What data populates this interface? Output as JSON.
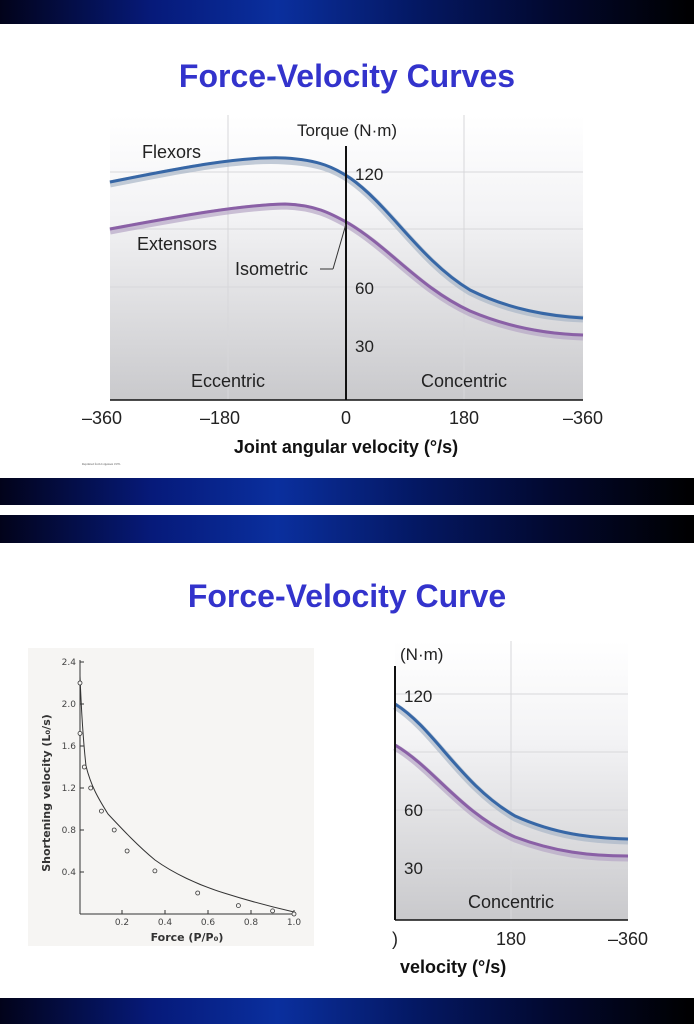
{
  "slide1": {
    "title": "Force-Velocity Curves",
    "credit": "Reprinted from Jorgensen 1976.",
    "labels": {
      "torque": "Torque (N·m)",
      "flexors": "Flexors",
      "extensors": "Extensors",
      "isometric": "Isometric",
      "eccentric": "Eccentric",
      "concentric": "Concentric",
      "xaxis": "Joint angular velocity (°/s)"
    },
    "y_ticks": [
      "120",
      "60",
      "30"
    ],
    "x_ticks": [
      "–360",
      "–180",
      "0",
      "180",
      "–360"
    ]
  },
  "slide2": {
    "title": "Force-Velocity Curve",
    "graph": {
      "ylabel": "Shortening velocity (L₀/s)",
      "xlabel": "Force (P/P₀)",
      "y_ticks": [
        "2.4",
        "2.0",
        "1.6",
        "1.2",
        "0.8",
        "0.4"
      ],
      "x_ticks": [
        "0.2",
        "0.4",
        "0.6",
        "0.8",
        "1.0"
      ]
    },
    "crop": {
      "torque": "(N·m)",
      "y_ticks": [
        "120",
        "60",
        "30"
      ],
      "x_ticks": [
        ")",
        "180",
        "–360"
      ],
      "concentric": "Concentric",
      "xaxis": "velocity (°/s)"
    }
  },
  "chart_data": [
    {
      "type": "line",
      "title": "Force-Velocity Curves",
      "xlabel": "Joint angular velocity (°/s)",
      "ylabel": "Torque (N·m)",
      "x_ticks": [
        "–360",
        "–180",
        "0",
        "180",
        "–360"
      ],
      "y_ticks": [
        "120",
        "60",
        "30"
      ],
      "series": [
        {
          "name": "Flexors",
          "x": [
            -360,
            -270,
            -180,
            -90,
            0,
            90,
            180,
            270,
            360
          ],
          "y": [
            116,
            121,
            125,
            127,
            117,
            87,
            62,
            50,
            47
          ]
        },
        {
          "name": "Extensors",
          "x": [
            -360,
            -270,
            -180,
            -90,
            0,
            90,
            180,
            270,
            360
          ],
          "y": [
            90,
            95,
            99,
            101,
            93,
            67,
            47,
            40,
            38
          ]
        }
      ],
      "annotations": [
        "Isometric",
        "Eccentric",
        "Concentric"
      ]
    },
    {
      "type": "scatter",
      "xlabel": "Force (P/P₀)",
      "ylabel": "Shortening velocity (L₀/s)",
      "xlim": [
        0,
        1.0
      ],
      "ylim": [
        0,
        2.4
      ],
      "x": [
        0.0,
        0.0,
        0.02,
        0.05,
        0.1,
        0.16,
        0.22,
        0.35,
        0.55,
        0.74,
        0.9,
        1.0
      ],
      "y": [
        2.2,
        1.72,
        1.4,
        1.2,
        0.98,
        0.8,
        0.6,
        0.41,
        0.2,
        0.08,
        0.03,
        0.0
      ]
    }
  ]
}
